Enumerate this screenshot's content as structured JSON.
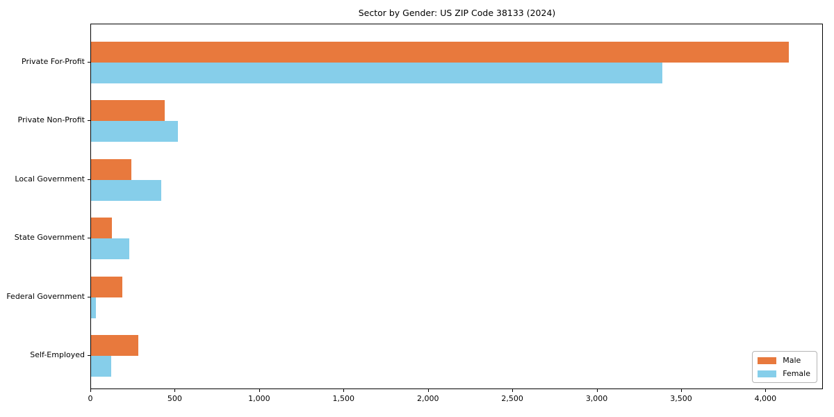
{
  "chart_data": {
    "type": "bar",
    "orientation": "horizontal",
    "title": "Sector by Gender: US ZIP Code 38133 (2024)",
    "categories": [
      "Private For-Profit",
      "Private Non-Profit",
      "Local Government",
      "State Government",
      "Federal Government",
      "Self-Employed"
    ],
    "series": [
      {
        "name": "Male",
        "color": "#E8793D",
        "values": [
          4134,
          438,
          239,
          122,
          185,
          281
        ]
      },
      {
        "name": "Female",
        "color": "#86CEEA",
        "values": [
          3386,
          516,
          417,
          225,
          28,
          119
        ]
      }
    ],
    "xlabel": "",
    "ylabel": "",
    "xlim": [
      0,
      4340
    ],
    "xticks": [
      0,
      500,
      1000,
      1500,
      2000,
      2500,
      3000,
      3500,
      4000
    ],
    "xtick_labels": [
      "0",
      "500",
      "1,000",
      "1,500",
      "2,000",
      "2,500",
      "3,000",
      "3,500",
      "4,000"
    ],
    "grid": false,
    "legend_position": "lower right",
    "background_color": "#ffffff",
    "axis_color": "#000000"
  }
}
